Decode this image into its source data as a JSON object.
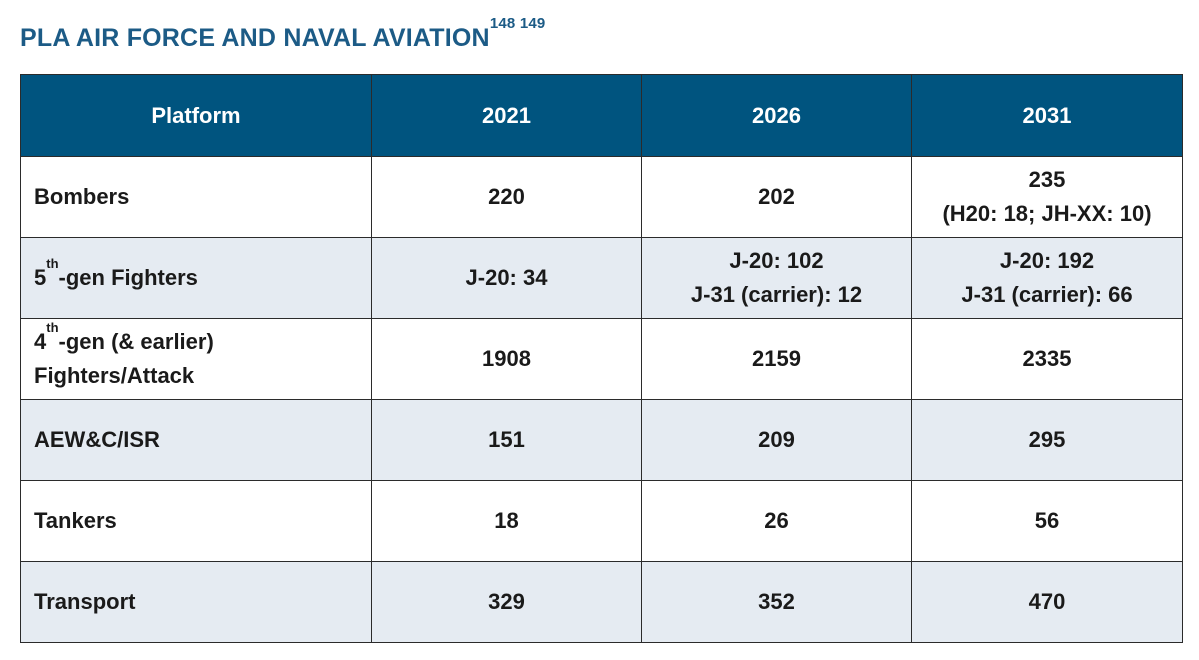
{
  "title": {
    "text": "PLA AIR FORCE AND NAVAL AVIATION",
    "footnotes": "148 149"
  },
  "table": {
    "headers": [
      "Platform",
      "2021",
      "2026",
      "2031"
    ],
    "rows": [
      {
        "platform": {
          "pre": "Bombers",
          "sup": "",
          "post": "",
          "line2": ""
        },
        "values": [
          {
            "line1": "220",
            "line2": ""
          },
          {
            "line1": "202",
            "line2": ""
          },
          {
            "line1": "235",
            "line2": "(H20: 18; JH-XX: 10)"
          }
        ]
      },
      {
        "platform": {
          "pre": "5",
          "sup": "th",
          "post": "-gen Fighters",
          "line2": ""
        },
        "values": [
          {
            "line1": "J-20: 34",
            "line2": ""
          },
          {
            "line1": "J-20: 102",
            "line2": "J-31 (carrier): 12"
          },
          {
            "line1": "J-20: 192",
            "line2": "J-31 (carrier): 66"
          }
        ]
      },
      {
        "platform": {
          "pre": "4",
          "sup": "th",
          "post": "-gen (& earlier)",
          "line2": "Fighters/Attack"
        },
        "values": [
          {
            "line1": "1908",
            "line2": ""
          },
          {
            "line1": "2159",
            "line2": ""
          },
          {
            "line1": "2335",
            "line2": ""
          }
        ]
      },
      {
        "platform": {
          "pre": "AEW&C/ISR",
          "sup": "",
          "post": "",
          "line2": ""
        },
        "values": [
          {
            "line1": "151",
            "line2": ""
          },
          {
            "line1": "209",
            "line2": ""
          },
          {
            "line1": "295",
            "line2": ""
          }
        ]
      },
      {
        "platform": {
          "pre": "Tankers",
          "sup": "",
          "post": "",
          "line2": ""
        },
        "values": [
          {
            "line1": "18",
            "line2": ""
          },
          {
            "line1": "26",
            "line2": ""
          },
          {
            "line1": "56",
            "line2": ""
          }
        ]
      },
      {
        "platform": {
          "pre": "Transport",
          "sup": "",
          "post": "",
          "line2": ""
        },
        "values": [
          {
            "line1": "329",
            "line2": ""
          },
          {
            "line1": "352",
            "line2": ""
          },
          {
            "line1": "470",
            "line2": ""
          }
        ]
      }
    ]
  },
  "colors": {
    "title": "#1c5b86",
    "header_bg": "#00547f",
    "header_text": "#ffffff",
    "row_alt_bg": "#e5ebf2",
    "border": "#2b2b2b"
  }
}
